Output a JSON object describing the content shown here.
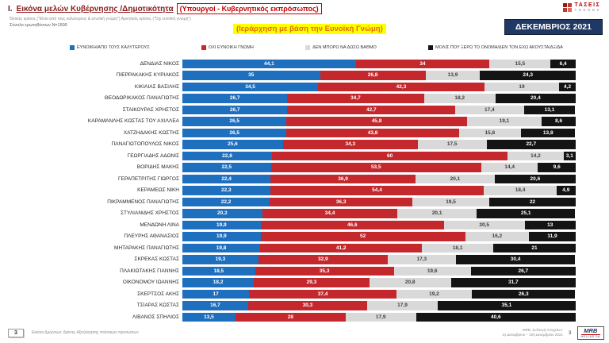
{
  "header": {
    "section_number": "Ι.",
    "title": "Εικόνα μελών Κυβέρνησης /Δημοτικότητα",
    "subtitle": "(Υπουργοί - Κυβερνητικός εκπρόσωπος)",
    "criteria_note": "Θετικές κρίσεις (\"Είναι από τους καλύτερους & ευνοϊκή γνώμη\")   Αρνητικές κρίσεις (\"Όχι ευνοϊκή γνώμη\")",
    "sample_note": "Σύνολο ερωτηθέντων Ν=1500",
    "ranking_note": "(Ιεράρχηση με βάση την Ευνοϊκή Γνώμη)",
    "date_box": "ΔΕΚΕΜΒΡΙΟΣ 2021",
    "brand": {
      "name": "ΤΑΣΕΙΣ",
      "sub": "TRENDS"
    }
  },
  "chart_data": {
    "type": "bar",
    "orientation": "horizontal",
    "stacked": true,
    "xlim": [
      0,
      100
    ],
    "value_format": "comma-decimal-percent",
    "categories": [
      "ΔΕΝΔΙΑΣ ΝΙΚΟΣ",
      "ΠΙΕΡΡΑΚΑΚΗΣ ΚΥΡΙΑΚΟΣ",
      "ΚΙΚΙΛΙΑΣ ΒΑΣΙΛΗΣ",
      "ΘΕΟΔΩΡΙΚΑΚΟΣ ΠΑΝΑΓΙΩΤΗΣ",
      "ΣΤΑΪΚΟΥΡΑΣ ΧΡΗΣΤΟΣ",
      "ΚΑΡΑΜΑΝΛΗΣ ΚΩΣΤΑΣ ΤΟΥ ΑΧΙΛΛΕΑ",
      "ΧΑΤΖΗΔΑΚΗΣ ΚΩΣΤΗΣ",
      "ΠΑΝΑΓΙΩΤΟΠΟΥΛΟΣ ΝΙΚΟΣ",
      "ΓΕΩΡΓΙΑΔΗΣ ΑΔΩΝΙΣ",
      "ΒΟΡΙΔΗΣ ΜΑΚΗΣ",
      "ΓΕΡΑΠΕΤΡΙΤΗΣ ΓΙΩΡΓΟΣ",
      "ΚΕΡΑΜΕΩΣ ΝΙΚΗ",
      "ΠΙΚΡΑΜΜΕΝΟΣ ΠΑΝΑΓΙΩΤΗΣ",
      "ΣΤΥΛΙΑΝΙΔΗΣ ΧΡΗΣΤΟΣ",
      "ΜΕΝΔΩΝΗ ΛΙΝΑ",
      "ΠΛΕΥΡΗΣ ΑΘΑΝΑΣΙΟΣ",
      "ΜΗΤΑΡΑΚΗΣ ΠΑΝΑΓΙΩΤΗΣ",
      "ΣΚΡΕΚΑΣ ΚΩΣΤΑΣ",
      "ΠΛΑΚΙΩΤΑΚΗΣ ΓΙΑΝΝΗΣ",
      "ΟΙΚΟΝΟΜΟΥ ΙΩΑΝΝΗΣ",
      "ΣΚΕΡΤΣΟΣ ΑΚΗΣ",
      "ΤΣΙΑΡΑΣ ΚΩΣΤΑΣ",
      "ΛΙΒΑΝΟΣ ΣΠΗΛΙΟΣ"
    ],
    "series": [
      {
        "name": "ΕΥΝΟΙΚΗ/ΑΠΟ ΤΟΥΣ ΚΑΛΥΤΕΡΟΥΣ",
        "color": "#1F6FBF",
        "values": [
          44.1,
          35,
          34.5,
          26.7,
          26.7,
          26.5,
          26.5,
          25.6,
          22.8,
          22.5,
          22.4,
          22.3,
          22.2,
          20.3,
          19.9,
          19.9,
          19.8,
          19.3,
          18.5,
          18.2,
          17,
          16.7,
          13.5
        ]
      },
      {
        "name": "ΟΧΙ ΕΥΝΟΙΚΗ ΓΝΩΜΗ",
        "color": "#C4282D",
        "values": [
          34,
          26.8,
          42.3,
          34.7,
          42.7,
          45.8,
          43.8,
          34.3,
          60,
          53.5,
          36.9,
          54.4,
          36.3,
          34.4,
          46.6,
          52,
          41.2,
          32.9,
          35.3,
          29.3,
          37.4,
          30.3,
          28
        ]
      },
      {
        "name": "ΔΕΝ ΜΠΟΡΩ ΝΑ ΔΩΣΩ ΒΑΘΜΟ",
        "color": "#D9D9D9",
        "values": [
          15.5,
          13.9,
          19,
          18.2,
          17.4,
          19.1,
          15.8,
          17.5,
          14.2,
          14.4,
          20.1,
          18.4,
          19.5,
          20.1,
          20.5,
          16.2,
          18.1,
          17.3,
          19.6,
          20.8,
          19.2,
          17.9,
          17.9
        ]
      },
      {
        "name": "ΜΟΛΙΣ ΠΟΥ ΞΕΡΩ ΤΟ ΟΝΟΜΑ/ΔΕΝ ΤΟΝ ΕΧΩ ΑΚΟΥΣΤΑ/ΔΞ/ΔΑ",
        "color": "#141414",
        "values": [
          6.4,
          24.3,
          4.2,
          20.4,
          13.1,
          8.6,
          13.8,
          22.7,
          3.1,
          9.6,
          20.6,
          4.9,
          22,
          25.1,
          13,
          11.9,
          21,
          30.4,
          26.7,
          31.7,
          26.3,
          35.1,
          40.6
        ]
      }
    ]
  },
  "footer": {
    "slide_number": "3",
    "left_note": "Εικόνα Δρώντων: Δείκτες Αξιολόγησης πολιτικών προσώπων",
    "source_line1": "MRB, Συλλογή στοιχείων:",
    "source_line2": "1η Δεκεμβρίου – 10η Δεκεμβρίου 2021",
    "page_number": "3",
    "logo": {
      "name": "MRB",
      "sub": "HELLAS SA"
    }
  }
}
